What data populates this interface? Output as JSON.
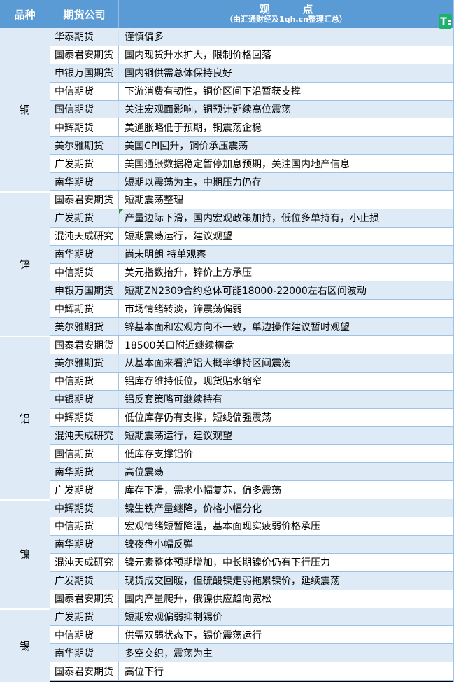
{
  "header": {
    "col1": "品种",
    "col2": "期货公司",
    "col3_title": "观　点",
    "col3_subtitle": "（由汇通财经及1qh.cn整理汇总）",
    "badge_letter": "T"
  },
  "colors": {
    "header_bg": "#5B9BD5",
    "row_alt_bg": "#DEEBF7",
    "row_bg": "#FFFFFF",
    "border": "#9DC3E6",
    "variety_col_bg": "#DEEBF7",
    "badge_green": "#1FAF6E",
    "comment_marker_green": "#2E8B3C",
    "bottom_border": "#000000"
  },
  "sections": [
    {
      "variety": "铜",
      "rows": [
        {
          "company": "华泰期货",
          "view": "谨慎偏多"
        },
        {
          "company": "国泰君安期货",
          "view": "国内现货升水扩大，限制价格回落"
        },
        {
          "company": "申银万国期货",
          "view": "国内铜供需总体保持良好"
        },
        {
          "company": "中信期货",
          "view": "下游消费有韧性，铜价区间下沿暂获支撑"
        },
        {
          "company": "国信期货",
          "view": "关注宏观面影响，铜预计延续高位震荡"
        },
        {
          "company": "中辉期货",
          "view": "美通胀略低于预期，铜震荡企稳"
        },
        {
          "company": "美尔雅期货",
          "view": "美国CPI回升，铜价承压震荡"
        },
        {
          "company": "广发期货",
          "view": "美国通胀数据稳定暂停加息预期，关注国内地产信息"
        },
        {
          "company": "南华期货",
          "view": "短期以震荡为主，中期压力仍存"
        }
      ]
    },
    {
      "variety": "锌",
      "rows": [
        {
          "company": "国泰君安期货",
          "view": "短期震荡整理"
        },
        {
          "company": "广发期货",
          "view": "产量边际下滑，国内宏观政策加持，低位多单持有，小止损",
          "marker": true
        },
        {
          "company": "混沌天成研究",
          "view": "短期震荡运行，建议观望"
        },
        {
          "company": "南华期货",
          "view": "尚未明朗 持单观察"
        },
        {
          "company": "中信期货",
          "view": "美元指数抬升，锌价上方承压"
        },
        {
          "company": "申银万国期货",
          "view": "短期ZN2309合约总体可能18000-22000左右区间波动"
        },
        {
          "company": "中辉期货",
          "view": "市场情绪转淡，锌震荡偏弱"
        },
        {
          "company": "美尔雅期货",
          "view": "锌基本面和宏观方向不一致，单边操作建议暂时观望"
        }
      ]
    },
    {
      "variety": "铝",
      "rows": [
        {
          "company": "国泰君安期货",
          "view": "18500关口附近继续横盘"
        },
        {
          "company": "美尔雅期货",
          "view": "从基本面来看沪铝大概率维持区间震荡"
        },
        {
          "company": "中信期货",
          "view": "铝库存维持低位，现货贴水缩窄"
        },
        {
          "company": "中银期货",
          "view": "铝反套策略可继续持有"
        },
        {
          "company": "中辉期货",
          "view": "低位库存仍有支撑，短线偏强震荡"
        },
        {
          "company": "混沌天成研究",
          "view": "短期震荡运行，建议观望"
        },
        {
          "company": "国信期货",
          "view": "低库存支撑铝价"
        },
        {
          "company": "南华期货",
          "view": "高位震荡"
        },
        {
          "company": "广发期货",
          "view": "库存下滑，需求小幅复苏，偏多震荡"
        }
      ]
    },
    {
      "variety": "镍",
      "rows": [
        {
          "company": "中辉期货",
          "view": "镍生铁产量继降，价格小幅分化"
        },
        {
          "company": "中信期货",
          "view": "宏观情绪短暂降温，基本面现实疲弱价格承压"
        },
        {
          "company": "南华期货",
          "view": "镍夜盘小幅反弹"
        },
        {
          "company": "混沌天成研究",
          "view": "镍元素整体预期增加，中长期镍价仍有下行压力"
        },
        {
          "company": "广发期货",
          "view": "现货成交回暖，但硫酸镍走弱拖累镍价，延续震荡"
        },
        {
          "company": "国泰君安期货",
          "view": "国内产量爬升，俄镍供应趋向宽松"
        }
      ]
    },
    {
      "variety": "锡",
      "rows": [
        {
          "company": "广发期货",
          "view": "短期宏观偏弱抑制锡价"
        },
        {
          "company": "中信期货",
          "view": "供需双弱状态下，锡价震荡运行"
        },
        {
          "company": "南华期货",
          "view": "多空交织，震荡为主"
        },
        {
          "company": "国泰君安期货",
          "view": "高位下行"
        }
      ]
    }
  ]
}
